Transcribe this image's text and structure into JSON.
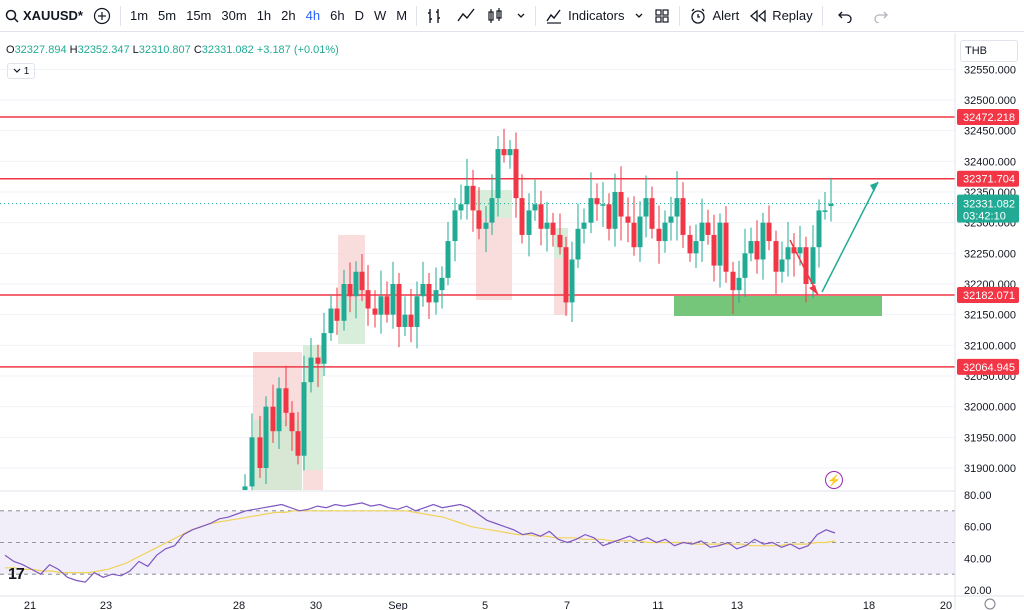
{
  "toolbar": {
    "symbol": "XAUUSD*",
    "timeframes": [
      "1m",
      "5m",
      "15m",
      "30m",
      "1h",
      "2h",
      "4h",
      "6h",
      "D",
      "W",
      "M"
    ],
    "active_timeframe": "4h",
    "indicators_label": "Indicators",
    "alert_label": "Alert",
    "replay_label": "Replay"
  },
  "legend": {
    "open_label": "O",
    "open": "32327.894",
    "high_label": "H",
    "high": "32352.347",
    "low_label": "L",
    "low": "32310.807",
    "close_label": "C",
    "close": "32331.082",
    "change": "+3.187 (+0.01%)",
    "indicator_count": "1"
  },
  "currency": "THB",
  "current_price": {
    "price": "32331.082",
    "countdown": "03:42:10"
  },
  "colors": {
    "up": "#22ab94",
    "down": "#f23645",
    "level_line": "#f23645",
    "rsi": "#7e57c2",
    "rsi_ma": "#f0d35a",
    "accent": "#2962ff"
  },
  "chart_data": {
    "type": "candlestick",
    "y_range": [
      31850,
      32590
    ],
    "price_ticks": [
      "32550.000",
      "32500.000",
      "32450.000",
      "32400.000",
      "32350.000",
      "32300.000",
      "32250.000",
      "32200.000",
      "32150.000",
      "32100.000",
      "32050.000",
      "32000.000",
      "31950.000",
      "31900.000"
    ],
    "horizontal_levels": [
      "32472.218",
      "32371.704",
      "32182.071",
      "32064.945"
    ],
    "x_ticks": [
      "21",
      "23",
      "28",
      "30",
      "Sep",
      "5",
      "7",
      "11",
      "13",
      "18",
      "20"
    ],
    "rsi": {
      "range": [
        20,
        80
      ],
      "ticks": [
        "80.00",
        "60.00",
        "40.00",
        "20.00"
      ],
      "band_upper": 70,
      "band_lower": 30,
      "mid": 50,
      "values": [
        42,
        38,
        36,
        33,
        30,
        36,
        33,
        28,
        26,
        25,
        31,
        28,
        30,
        29,
        32,
        38,
        35,
        42,
        46,
        48,
        55,
        58,
        60,
        62,
        65,
        66,
        68,
        70,
        71,
        72,
        73,
        74,
        72,
        70,
        71,
        73,
        72,
        74,
        73,
        74,
        75,
        73,
        74,
        72,
        71,
        73,
        70,
        72,
        74,
        72,
        73,
        74,
        72,
        68,
        64,
        62,
        60,
        58,
        55,
        56,
        54,
        57,
        52,
        50,
        52,
        55,
        53,
        48,
        50,
        52,
        54,
        51,
        53,
        50,
        52,
        48,
        50,
        49,
        51,
        47,
        48,
        50,
        46,
        48,
        52,
        49,
        50,
        47,
        49,
        46,
        48,
        55,
        58,
        56
      ],
      "ma": [
        34,
        34,
        33,
        33,
        32,
        32,
        31,
        31,
        31,
        31,
        32,
        33,
        35,
        37,
        40,
        43,
        46,
        49,
        52,
        55,
        58,
        60,
        62,
        63,
        64,
        65,
        66,
        67,
        68,
        69,
        69,
        70,
        70,
        70,
        70,
        70,
        70,
        70,
        70,
        70,
        70,
        70,
        70,
        70,
        69,
        68,
        67,
        66,
        64,
        62,
        60,
        59,
        58,
        57,
        56,
        55,
        55,
        54,
        54,
        53,
        53,
        53,
        52,
        52,
        52,
        51,
        51,
        51,
        51,
        50,
        50,
        50,
        50,
        50,
        49,
        49,
        49,
        49,
        49,
        49,
        48,
        48,
        48,
        48,
        49,
        49,
        49,
        50,
        50,
        51
      ]
    }
  }
}
